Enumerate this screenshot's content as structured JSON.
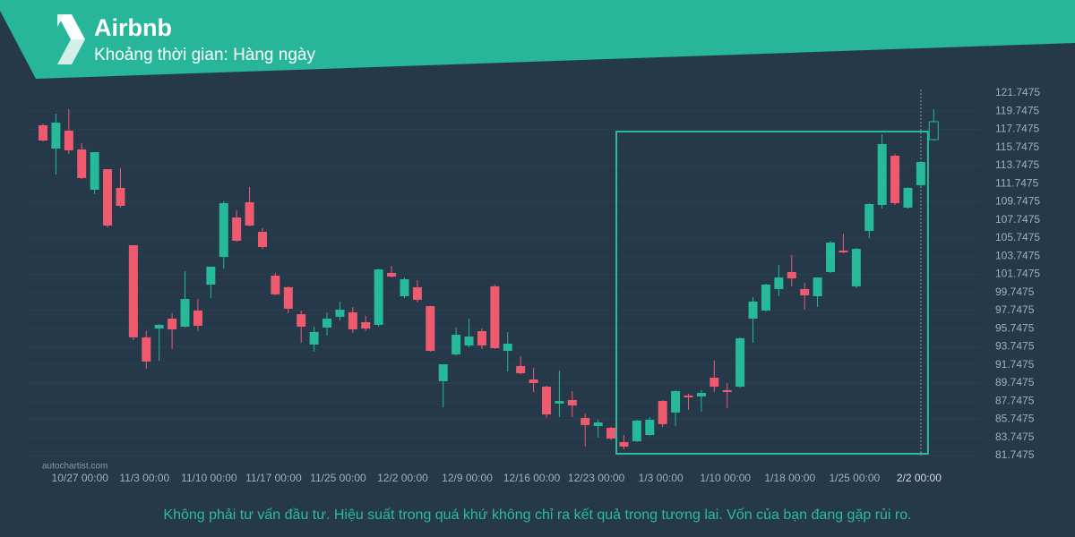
{
  "header": {
    "title": "Airbnb",
    "subtitle": "Khoảng thời gian: Hàng ngày"
  },
  "chart_data": {
    "type": "candlestick",
    "categories": [
      null,
      null,
      null,
      "10/27 00:00",
      null,
      null,
      null,
      null,
      "11/3 00:00",
      null,
      null,
      null,
      null,
      "11/10 00:00",
      null,
      null,
      null,
      null,
      "11/17 00:00",
      null,
      null,
      null,
      null,
      "11/25 00:00",
      null,
      null,
      null,
      null,
      "12/2 00:00",
      null,
      null,
      null,
      null,
      "12/9 00:00",
      null,
      null,
      null,
      null,
      "12/16 00:00",
      null,
      null,
      null,
      null,
      "12/23 00:00",
      null,
      null,
      null,
      null,
      "1/3 00:00",
      null,
      null,
      null,
      null,
      "1/10 00:00",
      null,
      null,
      null,
      null,
      "1/18 00:00",
      null,
      null,
      null,
      null,
      "1/25 00:00",
      null,
      null,
      null,
      null,
      "2/2 00:00",
      null
    ],
    "open": [
      118.19,
      115.62,
      117.6,
      115.53,
      111.08,
      113.35,
      111.28,
      104.96,
      94.79,
      95.77,
      96.86,
      95.97,
      97.75,
      100.61,
      103.67,
      108.02,
      109.7,
      106.44,
      101.6,
      100.32,
      97.35,
      94.0,
      95.87,
      97.06,
      97.55,
      96.46,
      96.17,
      101.9,
      99.33,
      100.32,
      98.24,
      89.95,
      92.91,
      93.9,
      95.48,
      100.42,
      93.3,
      91.62,
      90.14,
      89.35,
      87.48,
      87.87,
      85.9,
      85.01,
      84.81,
      83.23,
      83.33,
      84.02,
      87.77,
      86.49,
      88.37,
      88.27,
      90.34,
      88.96,
      89.35,
      96.86,
      97.75,
      100.12,
      102.0,
      100.12,
      99.33,
      102.0,
      104.37,
      100.42,
      106.54,
      109.4,
      114.83,
      109.11,
      111.58,
      116.61
    ],
    "high": [
      118.39,
      119.48,
      119.97,
      116.22,
      115.23,
      113.35,
      113.45,
      104.96,
      95.48,
      96.27,
      97.45,
      102.09,
      99.03,
      102.59,
      109.8,
      108.81,
      111.38,
      106.83,
      101.9,
      100.42,
      97.75,
      95.97,
      97.55,
      98.74,
      98.14,
      97.16,
      102.39,
      102.69,
      101.4,
      101.11,
      98.24,
      91.82,
      95.87,
      96.86,
      95.77,
      100.61,
      95.38,
      92.71,
      91.43,
      89.45,
      91.13,
      88.86,
      86.39,
      85.7,
      84.91,
      84.02,
      85.7,
      86.0,
      87.87,
      88.96,
      88.56,
      88.96,
      92.22,
      89.75,
      94.79,
      99.23,
      100.71,
      102.79,
      103.87,
      100.81,
      101.4,
      105.45,
      106.24,
      104.66,
      109.6,
      117.21,
      115.03,
      111.38,
      114.24,
      119.97
    ],
    "low": [
      116.42,
      112.76,
      115.03,
      112.27,
      110.59,
      106.93,
      109.11,
      94.49,
      91.33,
      92.22,
      93.5,
      95.87,
      95.48,
      99.13,
      102.39,
      105.35,
      107.03,
      104.56,
      99.43,
      97.45,
      94.19,
      93.21,
      94.98,
      96.66,
      95.28,
      95.48,
      95.97,
      101.4,
      99.13,
      98.64,
      93.21,
      87.08,
      92.81,
      93.7,
      93.5,
      93.5,
      91.03,
      90.74,
      88.76,
      85.9,
      86.0,
      86.0,
      82.74,
      83.72,
      83.43,
      82.44,
      83.23,
      83.92,
      84.91,
      85.01,
      86.79,
      86.59,
      88.76,
      86.98,
      89.25,
      94.19,
      97.65,
      99.33,
      100.42,
      97.85,
      98.14,
      101.9,
      104.07,
      100.22,
      105.75,
      109.01,
      109.4,
      109.01,
      111.48,
      116.51
    ],
    "close": [
      116.51,
      118.49,
      115.43,
      112.37,
      115.23,
      107.13,
      109.3,
      94.79,
      92.12,
      96.17,
      95.67,
      99.03,
      96.07,
      102.59,
      109.6,
      105.45,
      107.13,
      104.76,
      99.53,
      97.95,
      95.97,
      95.38,
      96.86,
      97.85,
      95.67,
      95.77,
      102.29,
      101.5,
      101.21,
      98.93,
      93.3,
      91.82,
      95.08,
      94.88,
      93.9,
      93.6,
      94.09,
      90.83,
      89.75,
      86.29,
      87.77,
      87.28,
      85.11,
      85.4,
      83.62,
      82.74,
      85.6,
      85.7,
      85.21,
      88.86,
      88.17,
      88.66,
      89.35,
      88.76,
      94.69,
      98.74,
      100.61,
      101.4,
      101.3,
      99.43,
      101.4,
      105.25,
      104.17,
      104.56,
      109.5,
      116.12,
      109.6,
      111.28,
      114.14,
      118.59
    ],
    "up_color": "#26b99a",
    "down_color": "#f05a6e",
    "hollow_last": true,
    "grid": true,
    "ylim": [
      81.7475,
      121.7475
    ],
    "yticks": [
      81.7475,
      83.7475,
      85.7475,
      87.7475,
      89.7475,
      91.7475,
      93.7475,
      95.7475,
      97.7475,
      99.7475,
      101.7475,
      103.7475,
      105.7475,
      107.7475,
      109.7475,
      111.7475,
      113.7475,
      115.7475,
      117.7475,
      119.7475,
      121.7475
    ],
    "pattern": {
      "from": 44,
      "to": 68,
      "top": 117.5,
      "bottom": 81.95
    },
    "source": "autochartist.com"
  },
  "disclaimer": "Không phải tư vấn đầu tư. Hiệu suất trong quá khứ không chỉ ra kết quả trong tương lai. Vốn của bạn đang gặp rủi ro."
}
